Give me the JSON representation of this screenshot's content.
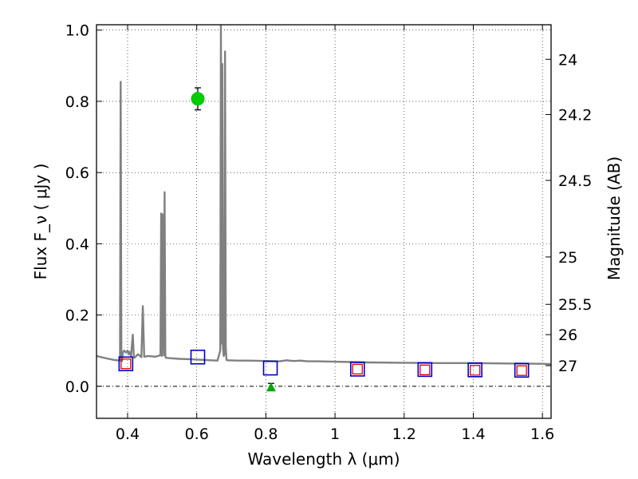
{
  "chart_data": {
    "type": "scatter",
    "xlabel": "Wavelength  λ (μm)",
    "ylabel": "Flux  F_ν  ( μJy )",
    "y2label": "Magnitude (AB)",
    "xlim": [
      0.31,
      1.625
    ],
    "ylim": [
      -0.09,
      1.015
    ],
    "grid": true,
    "x_ticks": [
      0.4,
      0.6,
      0.8,
      1.0,
      1.2,
      1.4,
      1.6
    ],
    "x_tick_labels": [
      "0.4",
      "0.6",
      "0.8",
      "1",
      "1.2",
      "1.4",
      "1.6"
    ],
    "y_ticks": [
      0.0,
      0.2,
      0.4,
      0.6,
      0.8,
      1.0
    ],
    "y_tick_labels": [
      "0.0",
      "0.2",
      "0.4",
      "0.6",
      "0.8",
      "1.0"
    ],
    "mag_ticks": [
      {
        "label": "24",
        "flux": 0.918
      },
      {
        "label": "24.2",
        "flux": 0.763
      },
      {
        "label": "24.5",
        "flux": 0.578
      },
      {
        "label": "25",
        "flux": 0.363
      },
      {
        "label": "25.5",
        "flux": 0.23
      },
      {
        "label": "26",
        "flux": 0.145
      },
      {
        "label": "27",
        "flux": 0.058
      }
    ],
    "series": [
      {
        "name": "SED model",
        "kind": "line",
        "color": "#808080",
        "x": [
          0.31,
          0.34,
          0.36,
          0.378,
          0.38,
          0.382,
          0.384,
          0.386,
          0.39,
          0.395,
          0.4,
          0.403,
          0.405,
          0.408,
          0.41,
          0.415,
          0.418,
          0.42,
          0.43,
          0.44,
          0.444,
          0.448,
          0.46,
          0.48,
          0.495,
          0.497,
          0.499,
          0.501,
          0.505,
          0.507,
          0.509,
          0.511,
          0.52,
          0.55,
          0.58,
          0.6,
          0.62,
          0.64,
          0.66,
          0.668,
          0.67,
          0.672,
          0.674,
          0.676,
          0.678,
          0.68,
          0.682,
          0.684,
          0.686,
          0.69,
          0.72,
          0.75,
          0.8,
          0.84,
          0.86,
          0.88,
          0.9,
          0.92,
          0.95,
          1.0,
          1.05,
          1.1,
          1.2,
          1.3,
          1.4,
          1.5,
          1.6,
          1.625
        ],
        "y": [
          0.085,
          0.078,
          0.074,
          0.072,
          0.855,
          0.075,
          0.071,
          0.095,
          0.1,
          0.095,
          0.1,
          0.09,
          0.097,
          0.09,
          0.085,
          0.145,
          0.085,
          0.08,
          0.09,
          0.082,
          0.225,
          0.083,
          0.085,
          0.083,
          0.087,
          0.485,
          0.085,
          0.483,
          0.087,
          0.545,
          0.085,
          0.08,
          0.079,
          0.077,
          0.076,
          0.075,
          0.074,
          0.073,
          0.072,
          0.1,
          1.015,
          0.12,
          0.905,
          0.11,
          0.085,
          0.09,
          0.94,
          0.11,
          0.074,
          0.073,
          0.072,
          0.072,
          0.071,
          0.07,
          0.073,
          0.071,
          0.072,
          0.07,
          0.07,
          0.069,
          0.068,
          0.067,
          0.066,
          0.065,
          0.065,
          0.064,
          0.063,
          0.062
        ]
      },
      {
        "name": "observed detection",
        "kind": "circle",
        "color": "#00cc00",
        "points": [
          {
            "x": 0.603,
            "y": 0.807,
            "yerr": 0.031
          }
        ]
      },
      {
        "name": "observed upper limit",
        "kind": "triangle",
        "color": "#00aa00",
        "points": [
          {
            "x": 0.815,
            "y": -0.002,
            "yerr": 0.01
          }
        ]
      },
      {
        "name": "model photometry",
        "kind": "open-square-large",
        "color": "#0000cc",
        "points": [
          {
            "x": 0.395,
            "y": 0.063
          },
          {
            "x": 0.603,
            "y": 0.082
          },
          {
            "x": 0.813,
            "y": 0.051
          },
          {
            "x": 1.065,
            "y": 0.048
          },
          {
            "x": 1.26,
            "y": 0.047
          },
          {
            "x": 1.405,
            "y": 0.046
          },
          {
            "x": 1.54,
            "y": 0.045
          }
        ]
      },
      {
        "name": "model photometry (alt)",
        "kind": "open-square-small",
        "color": "#dd0000",
        "points": [
          {
            "x": 0.395,
            "y": 0.063
          },
          {
            "x": 1.065,
            "y": 0.048
          },
          {
            "x": 1.26,
            "y": 0.046
          },
          {
            "x": 1.405,
            "y": 0.045
          },
          {
            "x": 1.54,
            "y": 0.044
          }
        ]
      }
    ]
  }
}
